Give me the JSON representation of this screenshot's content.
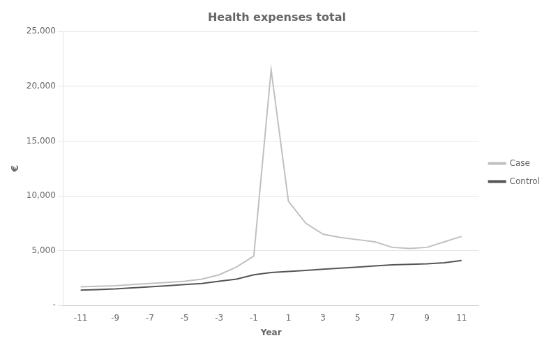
{
  "chart_data": {
    "type": "line",
    "title": "Health expenses total",
    "x_label": "Year",
    "y_label": "€",
    "x": [
      -11,
      -10,
      -9,
      -8,
      -7,
      -6,
      -5,
      -4,
      -3,
      -2,
      -1,
      0,
      1,
      2,
      3,
      4,
      5,
      6,
      7,
      8,
      9,
      10,
      11
    ],
    "series": [
      {
        "name": "Case",
        "color": "#c0c0c0",
        "values": [
          1700,
          1750,
          1800,
          1900,
          2000,
          2100,
          2200,
          2400,
          2800,
          3500,
          4500,
          21500,
          9500,
          7500,
          6500,
          6200,
          6000,
          5800,
          5300,
          5200,
          5300,
          5800,
          6300
        ]
      },
      {
        "name": "Control",
        "color": "#555555",
        "values": [
          1400,
          1450,
          1500,
          1600,
          1700,
          1800,
          1900,
          2000,
          2200,
          2400,
          2800,
          3000,
          3100,
          3200,
          3300,
          3400,
          3500,
          3600,
          3700,
          3750,
          3800,
          3900,
          4100
        ]
      }
    ],
    "xlim": [
      -12,
      12
    ],
    "xticks": [
      -11,
      -9,
      -7,
      -5,
      -3,
      -1,
      1,
      3,
      5,
      7,
      9,
      11
    ],
    "ylim": [
      0,
      25000
    ],
    "yticks": [
      {
        "value": 0,
        "label": "-"
      },
      {
        "value": 5000,
        "label": "5,000"
      },
      {
        "value": 10000,
        "label": "10,000"
      },
      {
        "value": 15000,
        "label": "15,000"
      },
      {
        "value": 20000,
        "label": "20,000"
      },
      {
        "value": 25000,
        "label": "25,000"
      }
    ],
    "grid": "y",
    "legend": "right"
  }
}
